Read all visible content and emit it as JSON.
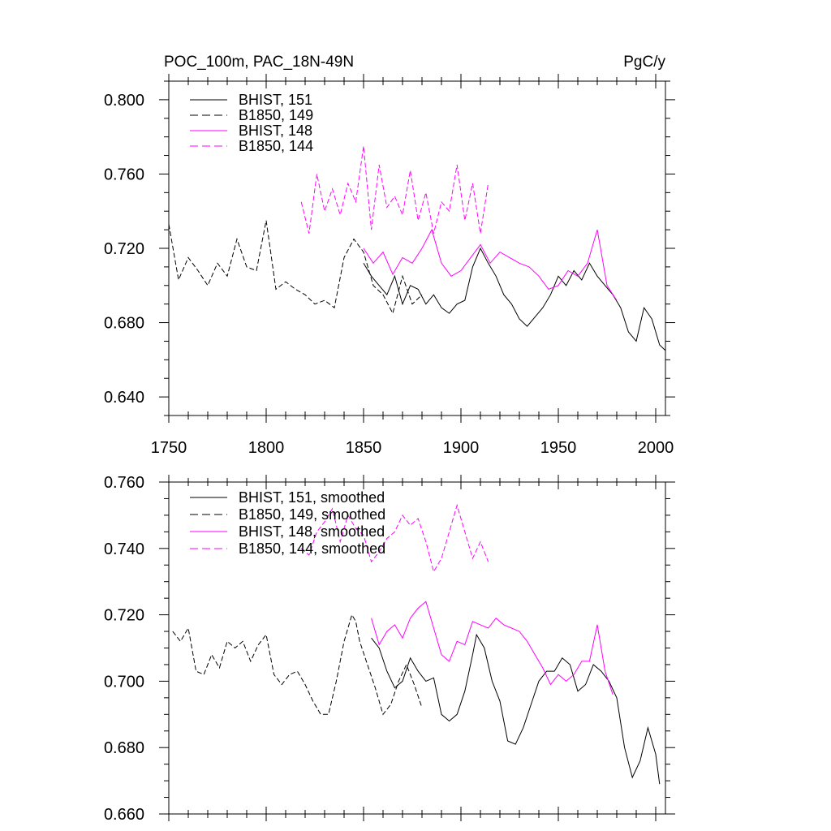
{
  "figure": {
    "title_left": "POC_100m, PAC_18N-49N",
    "title_right": "PgC/y"
  },
  "colors": {
    "black": "#000000",
    "magenta": "#ff00ff"
  },
  "chart_data": [
    {
      "type": "line",
      "title": "POC_100m, PAC_18N-49N",
      "units": "PgC/y",
      "xlim": [
        1750,
        2005
      ],
      "ylim": [
        0.63,
        0.81
      ],
      "xticks": [
        1750,
        1800,
        1850,
        1900,
        1950,
        2000
      ],
      "xtick_labels": [
        "1750",
        "1800",
        "1850",
        "1900",
        "1950",
        "2000"
      ],
      "yticks": [
        0.64,
        0.68,
        0.72,
        0.76,
        0.8
      ],
      "ytick_labels": [
        "0.640",
        "0.680",
        "0.720",
        "0.760",
        "0.800"
      ],
      "legend_position": "top-left",
      "series": [
        {
          "name": "BHIST, 151",
          "color": "#000000",
          "dash": "solid",
          "x": [
            1850,
            1854,
            1858,
            1862,
            1866,
            1870,
            1874,
            1878,
            1882,
            1886,
            1890,
            1894,
            1898,
            1902,
            1906,
            1910,
            1914,
            1918,
            1922,
            1926,
            1930,
            1934,
            1938,
            1942,
            1946,
            1950,
            1954,
            1958,
            1962,
            1966,
            1970,
            1974,
            1978,
            1982,
            1986,
            1990,
            1994,
            1998,
            2002,
            2005
          ],
          "y": [
            0.712,
            0.705,
            0.7,
            0.695,
            0.705,
            0.69,
            0.7,
            0.698,
            0.69,
            0.695,
            0.688,
            0.685,
            0.69,
            0.692,
            0.71,
            0.72,
            0.712,
            0.705,
            0.695,
            0.69,
            0.682,
            0.678,
            0.683,
            0.688,
            0.695,
            0.705,
            0.7,
            0.708,
            0.703,
            0.712,
            0.705,
            0.7,
            0.695,
            0.688,
            0.675,
            0.67,
            0.688,
            0.682,
            0.668,
            0.665
          ]
        },
        {
          "name": "B1850, 149",
          "color": "#000000",
          "dash": "dashed",
          "x": [
            1750,
            1755,
            1760,
            1765,
            1770,
            1775,
            1780,
            1785,
            1790,
            1795,
            1800,
            1805,
            1810,
            1815,
            1820,
            1825,
            1830,
            1835,
            1840,
            1845,
            1850,
            1855,
            1860,
            1865,
            1870,
            1875,
            1880
          ],
          "y": [
            0.733,
            0.703,
            0.715,
            0.708,
            0.7,
            0.712,
            0.705,
            0.725,
            0.71,
            0.708,
            0.735,
            0.698,
            0.702,
            0.698,
            0.695,
            0.69,
            0.692,
            0.688,
            0.715,
            0.725,
            0.718,
            0.7,
            0.695,
            0.685,
            0.705,
            0.69,
            0.695
          ]
        },
        {
          "name": "BHIST, 148",
          "color": "#ff00ff",
          "dash": "solid",
          "x": [
            1850,
            1855,
            1860,
            1865,
            1870,
            1875,
            1880,
            1885,
            1890,
            1895,
            1900,
            1905,
            1910,
            1915,
            1920,
            1925,
            1930,
            1935,
            1940,
            1945,
            1950,
            1955,
            1960,
            1965,
            1970,
            1975,
            1980
          ],
          "y": [
            0.72,
            0.712,
            0.718,
            0.706,
            0.715,
            0.712,
            0.72,
            0.73,
            0.712,
            0.705,
            0.708,
            0.715,
            0.722,
            0.712,
            0.718,
            0.715,
            0.712,
            0.71,
            0.705,
            0.698,
            0.7,
            0.708,
            0.705,
            0.712,
            0.73,
            0.7,
            0.692
          ]
        },
        {
          "name": "B1850, 144",
          "color": "#ff00ff",
          "dash": "dashed",
          "x": [
            1818,
            1822,
            1826,
            1830,
            1834,
            1838,
            1842,
            1846,
            1850,
            1854,
            1858,
            1862,
            1866,
            1870,
            1874,
            1878,
            1882,
            1886,
            1890,
            1894,
            1898,
            1902,
            1906,
            1910,
            1914
          ],
          "y": [
            0.745,
            0.728,
            0.76,
            0.74,
            0.752,
            0.738,
            0.755,
            0.745,
            0.775,
            0.73,
            0.765,
            0.742,
            0.748,
            0.738,
            0.762,
            0.735,
            0.75,
            0.728,
            0.745,
            0.74,
            0.765,
            0.735,
            0.755,
            0.728,
            0.755
          ]
        }
      ]
    },
    {
      "type": "line",
      "title": "",
      "xlim": [
        1750,
        2005
      ],
      "ylim": [
        0.66,
        0.76
      ],
      "yticks": [
        0.66,
        0.68,
        0.7,
        0.72,
        0.74,
        0.76
      ],
      "ytick_labels": [
        "0.660",
        "0.680",
        "0.700",
        "0.720",
        "0.740",
        "0.760"
      ],
      "legend_position": "top-left",
      "series": [
        {
          "name": "BHIST, 151, smoothed",
          "color": "#000000",
          "dash": "solid",
          "x": [
            1854,
            1858,
            1862,
            1866,
            1870,
            1874,
            1878,
            1882,
            1886,
            1890,
            1894,
            1898,
            1902,
            1906,
            1908,
            1912,
            1916,
            1920,
            1924,
            1928,
            1932,
            1936,
            1940,
            1944,
            1948,
            1952,
            1956,
            1960,
            1964,
            1968,
            1972,
            1976,
            1980,
            1984,
            1988,
            1992,
            1996,
            2000,
            2002
          ],
          "y": [
            0.713,
            0.71,
            0.703,
            0.698,
            0.7,
            0.707,
            0.703,
            0.7,
            0.701,
            0.69,
            0.688,
            0.69,
            0.697,
            0.708,
            0.714,
            0.71,
            0.7,
            0.694,
            0.682,
            0.681,
            0.686,
            0.693,
            0.7,
            0.703,
            0.703,
            0.707,
            0.705,
            0.697,
            0.699,
            0.705,
            0.703,
            0.7,
            0.695,
            0.68,
            0.671,
            0.676,
            0.686,
            0.678,
            0.669
          ]
        },
        {
          "name": "B1850, 149, smoothed",
          "color": "#000000",
          "dash": "dashed",
          "x": [
            1752,
            1756,
            1760,
            1764,
            1768,
            1772,
            1776,
            1780,
            1784,
            1788,
            1792,
            1796,
            1800,
            1804,
            1808,
            1812,
            1816,
            1820,
            1824,
            1828,
            1832,
            1836,
            1840,
            1844,
            1846,
            1848,
            1852,
            1856,
            1860,
            1864,
            1868,
            1872,
            1876,
            1880
          ],
          "y": [
            0.715,
            0.712,
            0.716,
            0.703,
            0.702,
            0.708,
            0.704,
            0.712,
            0.71,
            0.712,
            0.706,
            0.711,
            0.714,
            0.702,
            0.699,
            0.702,
            0.703,
            0.699,
            0.694,
            0.69,
            0.69,
            0.7,
            0.712,
            0.72,
            0.718,
            0.712,
            0.705,
            0.698,
            0.69,
            0.693,
            0.7,
            0.705,
            0.699,
            0.692
          ]
        },
        {
          "name": "BHIST, 148, smoothed",
          "color": "#ff00ff",
          "dash": "solid",
          "x": [
            1854,
            1858,
            1862,
            1866,
            1870,
            1874,
            1878,
            1882,
            1886,
            1890,
            1894,
            1898,
            1902,
            1906,
            1910,
            1914,
            1918,
            1922,
            1926,
            1930,
            1934,
            1938,
            1942,
            1946,
            1950,
            1954,
            1958,
            1962,
            1966,
            1970,
            1974,
            1978
          ],
          "y": [
            0.719,
            0.711,
            0.715,
            0.717,
            0.713,
            0.719,
            0.722,
            0.724,
            0.716,
            0.708,
            0.706,
            0.712,
            0.711,
            0.718,
            0.717,
            0.716,
            0.719,
            0.717,
            0.716,
            0.715,
            0.712,
            0.708,
            0.704,
            0.699,
            0.702,
            0.7,
            0.702,
            0.706,
            0.706,
            0.717,
            0.703,
            0.696
          ]
        },
        {
          "name": "B1850, 144, smoothed",
          "color": "#ff00ff",
          "dash": "dashed",
          "x": [
            1818,
            1822,
            1826,
            1830,
            1834,
            1838,
            1842,
            1846,
            1850,
            1854,
            1858,
            1862,
            1866,
            1870,
            1874,
            1878,
            1882,
            1886,
            1890,
            1894,
            1898,
            1902,
            1906,
            1910,
            1914
          ],
          "y": [
            0.74,
            0.738,
            0.745,
            0.748,
            0.752,
            0.742,
            0.75,
            0.746,
            0.744,
            0.736,
            0.739,
            0.743,
            0.745,
            0.75,
            0.747,
            0.749,
            0.742,
            0.733,
            0.737,
            0.745,
            0.753,
            0.745,
            0.737,
            0.742,
            0.736
          ]
        }
      ]
    }
  ]
}
